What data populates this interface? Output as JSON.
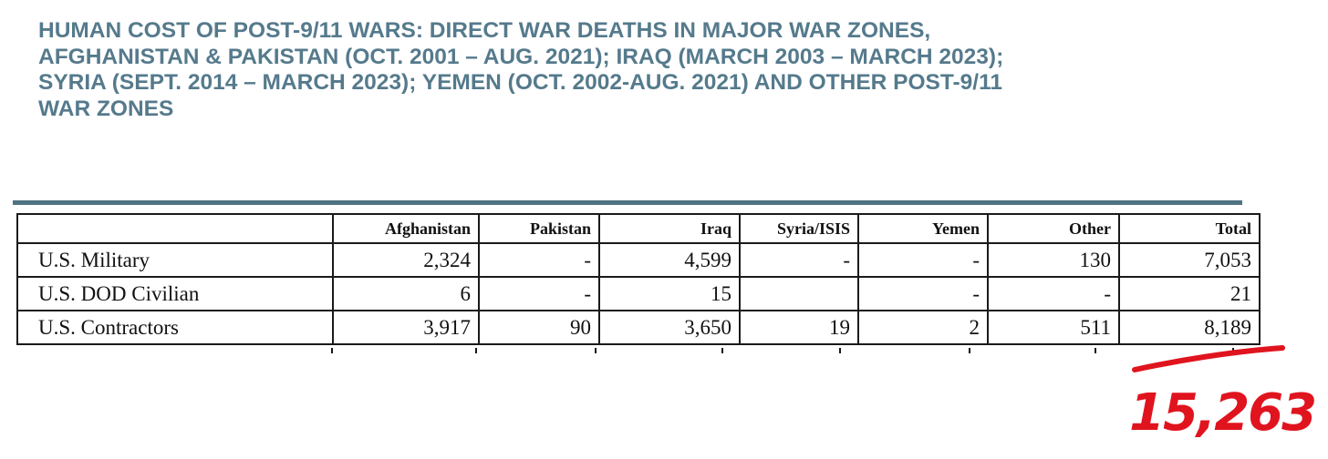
{
  "title_lines": [
    "HUMAN COST OF POST-9/11 WARS: DIRECT WAR DEATHS IN MAJOR WAR ZONES,",
    "AFGHANISTAN & PAKISTAN (OCT. 2001 – AUG. 2021); IRAQ (MARCH 2003 – MARCH 2023);",
    "SYRIA (SEPT. 2014 – MARCH 2023); YEMEN (OCT. 2002-AUG. 2021) AND OTHER POST-9/11",
    "WAR ZONES"
  ],
  "table": {
    "headers": [
      "",
      "Afghanistan",
      "Pakistan",
      "Iraq",
      "Syria/ISIS",
      "Yemen",
      "Other",
      "Total"
    ],
    "rows": [
      [
        "U.S. Military",
        "2,324",
        "-",
        "4,599",
        "-",
        "-",
        "130",
        "7,053"
      ],
      [
        "U.S. DOD Civilian",
        "6",
        "-",
        "15",
        "",
        "-",
        "-",
        "21"
      ],
      [
        "U.S. Contractors",
        "3,917",
        "90",
        "3,650",
        "19",
        "2",
        "511",
        "8,189"
      ]
    ]
  },
  "annotation": {
    "text": "15,263",
    "color": "#e0141e"
  },
  "colors": {
    "title": "#557a8c",
    "rule": "#4f7381"
  }
}
